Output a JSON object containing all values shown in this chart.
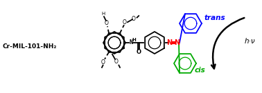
{
  "label_cr": "Cr-MIL-101-NH₂",
  "label_trans": "trans",
  "label_cis": "cis",
  "label_hv": "h·ν",
  "color_blue": "#0000ff",
  "color_green": "#00aa00",
  "color_red": "#ff0000",
  "color_black": "#000000",
  "color_bg": "#ffffff",
  "fig_width": 3.78,
  "fig_height": 1.35,
  "dpi": 100
}
